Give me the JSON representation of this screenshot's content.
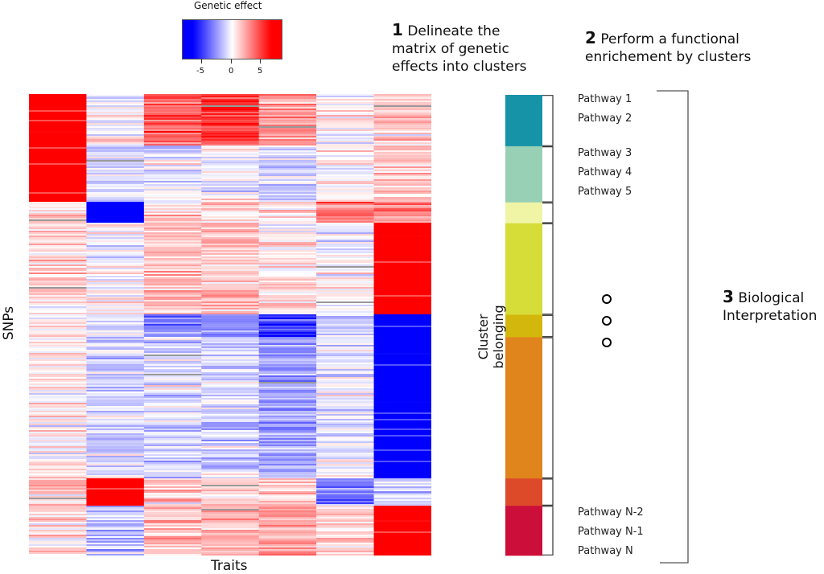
{
  "legend": {
    "title": "Genetic effect",
    "ticks": [
      "-5",
      "0",
      "5"
    ],
    "tick_values": [
      -5,
      0,
      5
    ],
    "range": [
      -8,
      8
    ],
    "low_color": "#0000ff",
    "mid_color": "#ffffff",
    "high_color": "#ff0000"
  },
  "steps": [
    {
      "num": "1",
      "text": "Delineate the matrix of genetic effects into clusters"
    },
    {
      "num": "2",
      "text": "Perform a functional enrichement by clusters"
    },
    {
      "num": "3",
      "text": "Biological Interpretation"
    }
  ],
  "axes": {
    "x_label": "Traits",
    "y_label": "SNPs",
    "cluster_label": "Cluster belonging"
  },
  "heatmap": {
    "n_traits": 7,
    "seed": 42,
    "clusters": [
      {
        "snps": 32,
        "color": "#1793a8",
        "means": [
          7,
          0.3,
          4,
          5,
          2,
          0.3,
          1
        ]
      },
      {
        "snps": 35,
        "color": "#98d0b5",
        "means": [
          7,
          -1,
          -0.5,
          0,
          -1,
          0.5,
          1.5
        ]
      },
      {
        "snps": 13,
        "color": "#f0f5a6",
        "means": [
          1,
          -7,
          1,
          1,
          1,
          3,
          2.5
        ]
      },
      {
        "snps": 57,
        "color": "#d6dc38",
        "means": [
          1,
          0,
          1.5,
          1.5,
          0.5,
          0,
          7
        ]
      },
      {
        "snps": 14,
        "color": "#d4b70c",
        "means": [
          0.5,
          -1,
          -3,
          -3,
          -5,
          -1,
          -7
        ]
      },
      {
        "snps": 88,
        "color": "#e0841c",
        "means": [
          0.5,
          -1,
          -0.8,
          -1.2,
          -2,
          -0.5,
          -7
        ]
      },
      {
        "snps": 17,
        "color": "#dc4a2a",
        "means": [
          1,
          7,
          1,
          1,
          1,
          -3,
          -1
        ]
      },
      {
        "snps": 31,
        "color": "#cc0e3a",
        "means": [
          1,
          -1.5,
          1.5,
          1.5,
          2.5,
          1,
          7
        ]
      }
    ]
  },
  "pathways": {
    "group1": [
      "Pathway 1",
      "Pathway 2"
    ],
    "group2": [
      "Pathway 3",
      "Pathway 4",
      "Pathway 5"
    ],
    "group_last": [
      "Pathway N-2",
      "Pathway N-1",
      "Pathway N"
    ]
  }
}
